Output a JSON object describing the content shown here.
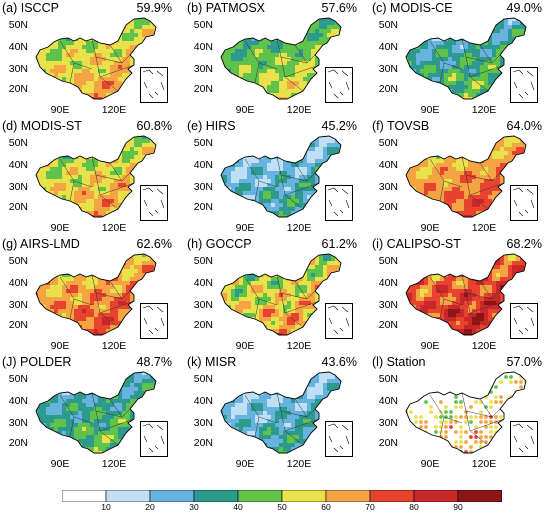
{
  "panels": [
    {
      "label": "(a) ISCCP",
      "percent": "59.9%",
      "scheme": 5,
      "varia": 0.9
    },
    {
      "label": "(b) PATMOSX",
      "percent": "57.6%",
      "scheme": 4,
      "varia": 0.8
    },
    {
      "label": "(c) MODIS-CE",
      "percent": "49.0%",
      "scheme": 3,
      "varia": 1.1
    },
    {
      "label": "(d) MODIS-ST",
      "percent": "60.8%",
      "scheme": 5,
      "varia": 1.0
    },
    {
      "label": "(e) HIRS",
      "percent": "45.2%",
      "scheme": 2,
      "varia": 1.2
    },
    {
      "label": "(f) TOVSB",
      "percent": "64.0%",
      "scheme": 6,
      "varia": 0.8
    },
    {
      "label": "(g) AIRS-LMD",
      "percent": "62.6%",
      "scheme": 6,
      "varia": 1.0
    },
    {
      "label": "(h) GOCCP",
      "percent": "61.2%",
      "scheme": 5,
      "varia": 1.3
    },
    {
      "label": "(i) CALIPSO-ST",
      "percent": "68.2%",
      "scheme": 7,
      "varia": 1.3
    },
    {
      "label": "(J) POLDER",
      "percent": "48.7%",
      "scheme": 3,
      "varia": 1.0
    },
    {
      "label": "(k) MISR",
      "percent": "43.6%",
      "scheme": 2,
      "varia": 1.1
    },
    {
      "label": "(l) Station",
      "percent": "57.0%",
      "scheme": 5,
      "varia": 1.0,
      "station": true
    }
  ],
  "axes": {
    "lat_labels": [
      "50N",
      "40N",
      "30N",
      "20N"
    ],
    "lon_labels": [
      "90E",
      "120E"
    ]
  },
  "colorbar": {
    "levels": [
      "10",
      "20",
      "30",
      "40",
      "50",
      "60",
      "70",
      "80",
      "90"
    ],
    "colors": [
      "#ffffff",
      "#bfe0f4",
      "#67b3e0",
      "#2e9a8f",
      "#5fc24a",
      "#e8e14a",
      "#f5a443",
      "#e8432e",
      "#c8282a",
      "#8f1416"
    ]
  }
}
